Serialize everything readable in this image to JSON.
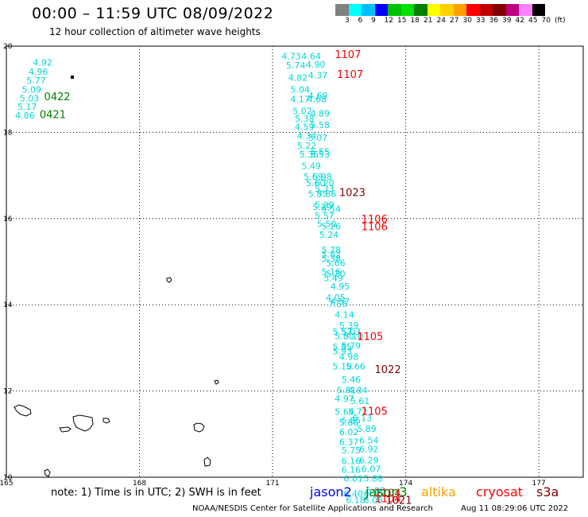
{
  "header": {
    "title": "00:00 – 11:59 UTC 08/09/2022",
    "subtitle": "12 hour collection of altimeter wave heights"
  },
  "colorbar": {
    "colors": [
      "#808080",
      "#00ffff",
      "#00bfff",
      "#0000ff",
      "#00c000",
      "#00e000",
      "#008000",
      "#ffff00",
      "#ffd000",
      "#ffa000",
      "#ff0000",
      "#c00000",
      "#800000",
      "#c00080",
      "#ff80ff",
      "#000000"
    ],
    "labels": [
      "3",
      "6",
      "9",
      "12",
      "15",
      "18",
      "21",
      "24",
      "27",
      "30",
      "33",
      "36",
      "39",
      "42",
      "45",
      "70",
      "(ft)"
    ]
  },
  "map": {
    "lon_range": [
      165,
      178
    ],
    "lat_range": [
      10,
      20
    ],
    "x_ticks": [
      "165",
      "168",
      "171",
      "174",
      "177"
    ],
    "y_ticks": [
      "20",
      "18",
      "16",
      "14",
      "12",
      "10"
    ],
    "swh_points": [
      {
        "lon": 165.6,
        "lat": 19.55,
        "v": "4.92"
      },
      {
        "lon": 165.5,
        "lat": 19.34,
        "v": "4.96"
      },
      {
        "lon": 165.45,
        "lat": 19.13,
        "v": "5.77"
      },
      {
        "lon": 165.35,
        "lat": 18.92,
        "v": "5.09"
      },
      {
        "lon": 165.3,
        "lat": 18.72,
        "v": "5.03"
      },
      {
        "lon": 165.25,
        "lat": 18.52,
        "v": "5.17"
      },
      {
        "lon": 165.2,
        "lat": 18.32,
        "v": "4.86"
      },
      {
        "lon": 171.2,
        "lat": 19.7,
        "v": "4.73"
      },
      {
        "lon": 171.65,
        "lat": 19.7,
        "v": "4.64"
      },
      {
        "lon": 171.3,
        "lat": 19.48,
        "v": "5.74"
      },
      {
        "lon": 171.75,
        "lat": 19.5,
        "v": "4.90"
      },
      {
        "lon": 171.35,
        "lat": 19.2,
        "v": "4.82"
      },
      {
        "lon": 171.8,
        "lat": 19.25,
        "v": "4.37"
      },
      {
        "lon": 171.4,
        "lat": 18.92,
        "v": "5.04"
      },
      {
        "lon": 171.8,
        "lat": 18.78,
        "v": "4.69"
      },
      {
        "lon": 171.4,
        "lat": 18.7,
        "v": "4.17"
      },
      {
        "lon": 171.78,
        "lat": 18.7,
        "v": "4.68"
      },
      {
        "lon": 171.45,
        "lat": 18.42,
        "v": "5.02"
      },
      {
        "lon": 171.85,
        "lat": 18.37,
        "v": "4.89"
      },
      {
        "lon": 171.5,
        "lat": 18.25,
        "v": "5.38"
      },
      {
        "lon": 171.85,
        "lat": 18.1,
        "v": "5.58"
      },
      {
        "lon": 171.5,
        "lat": 18.05,
        "v": "4.59"
      },
      {
        "lon": 171.55,
        "lat": 17.85,
        "v": "4.34"
      },
      {
        "lon": 171.8,
        "lat": 17.8,
        "v": "5.07"
      },
      {
        "lon": 171.55,
        "lat": 17.62,
        "v": "5.22"
      },
      {
        "lon": 171.85,
        "lat": 17.48,
        "v": "5.55"
      },
      {
        "lon": 171.6,
        "lat": 17.42,
        "v": "5.35"
      },
      {
        "lon": 171.85,
        "lat": 17.42,
        "v": "5.53"
      },
      {
        "lon": 171.65,
        "lat": 17.15,
        "v": "5.49"
      },
      {
        "lon": 171.7,
        "lat": 16.9,
        "v": "5.69"
      },
      {
        "lon": 171.9,
        "lat": 16.9,
        "v": "5.98"
      },
      {
        "lon": 171.75,
        "lat": 16.75,
        "v": "5.60"
      },
      {
        "lon": 171.95,
        "lat": 16.75,
        "v": "6.20"
      },
      {
        "lon": 171.95,
        "lat": 16.62,
        "v": "5.33"
      },
      {
        "lon": 171.8,
        "lat": 16.5,
        "v": "5.85"
      },
      {
        "lon": 172.0,
        "lat": 16.5,
        "v": "5.86"
      },
      {
        "lon": 171.95,
        "lat": 16.25,
        "v": "5.39"
      },
      {
        "lon": 171.9,
        "lat": 16.2,
        "v": "5.29"
      },
      {
        "lon": 172.1,
        "lat": 16.15,
        "v": "5.54"
      },
      {
        "lon": 171.95,
        "lat": 16.0,
        "v": "5.57"
      },
      {
        "lon": 172.0,
        "lat": 15.8,
        "v": "5.50"
      },
      {
        "lon": 172.1,
        "lat": 15.75,
        "v": "5.26"
      },
      {
        "lon": 172.05,
        "lat": 15.55,
        "v": "5.24"
      },
      {
        "lon": 172.1,
        "lat": 15.2,
        "v": "5.78"
      },
      {
        "lon": 172.1,
        "lat": 15.1,
        "v": "5.82"
      },
      {
        "lon": 172.1,
        "lat": 15.0,
        "v": "5.38"
      },
      {
        "lon": 172.2,
        "lat": 14.9,
        "v": "5.66"
      },
      {
        "lon": 172.1,
        "lat": 14.7,
        "v": "5.16"
      },
      {
        "lon": 172.2,
        "lat": 14.65,
        "v": "5.20"
      },
      {
        "lon": 172.15,
        "lat": 14.55,
        "v": "5.49"
      },
      {
        "lon": 172.3,
        "lat": 14.35,
        "v": "4.95"
      },
      {
        "lon": 172.2,
        "lat": 14.1,
        "v": "4.05"
      },
      {
        "lon": 172.3,
        "lat": 14.0,
        "v": "4.57"
      },
      {
        "lon": 172.25,
        "lat": 13.95,
        "v": "7.55"
      },
      {
        "lon": 172.4,
        "lat": 13.7,
        "v": "4.14"
      },
      {
        "lon": 172.5,
        "lat": 13.45,
        "v": "5.39"
      },
      {
        "lon": 172.35,
        "lat": 13.3,
        "v": "5.57"
      },
      {
        "lon": 172.55,
        "lat": 13.3,
        "v": "5.03"
      },
      {
        "lon": 172.4,
        "lat": 13.2,
        "v": "5.80"
      },
      {
        "lon": 172.6,
        "lat": 13.2,
        "v": "5.10"
      },
      {
        "lon": 172.35,
        "lat": 12.95,
        "v": "5.85"
      },
      {
        "lon": 172.55,
        "lat": 12.98,
        "v": "5.79"
      },
      {
        "lon": 172.35,
        "lat": 12.85,
        "v": "5.93"
      },
      {
        "lon": 172.5,
        "lat": 12.72,
        "v": "4.98"
      },
      {
        "lon": 172.35,
        "lat": 12.5,
        "v": "5.18"
      },
      {
        "lon": 172.65,
        "lat": 12.5,
        "v": "5.66"
      },
      {
        "lon": 172.55,
        "lat": 12.2,
        "v": "5.46"
      },
      {
        "lon": 172.45,
        "lat": 11.95,
        "v": "5.81"
      },
      {
        "lon": 172.7,
        "lat": 11.95,
        "v": "4.84"
      },
      {
        "lon": 172.4,
        "lat": 11.75,
        "v": "4.97"
      },
      {
        "lon": 172.75,
        "lat": 11.7,
        "v": "5.61"
      },
      {
        "lon": 172.4,
        "lat": 11.45,
        "v": "5.64"
      },
      {
        "lon": 172.7,
        "lat": 11.45,
        "v": "5.72"
      },
      {
        "lon": 172.55,
        "lat": 11.25,
        "v": "5.85"
      },
      {
        "lon": 172.5,
        "lat": 11.2,
        "v": "5.86"
      },
      {
        "lon": 172.8,
        "lat": 11.3,
        "v": "6.13"
      },
      {
        "lon": 172.5,
        "lat": 10.98,
        "v": "6.02"
      },
      {
        "lon": 172.9,
        "lat": 11.05,
        "v": "5.89"
      },
      {
        "lon": 172.5,
        "lat": 10.75,
        "v": "6.37"
      },
      {
        "lon": 172.95,
        "lat": 10.78,
        "v": "6.54"
      },
      {
        "lon": 172.55,
        "lat": 10.55,
        "v": "5.75"
      },
      {
        "lon": 172.95,
        "lat": 10.58,
        "v": "6.92"
      },
      {
        "lon": 172.55,
        "lat": 10.3,
        "v": "6.16"
      },
      {
        "lon": 172.95,
        "lat": 10.32,
        "v": "6.29"
      },
      {
        "lon": 172.55,
        "lat": 10.1,
        "v": "6.16"
      },
      {
        "lon": 173.0,
        "lat": 10.12,
        "v": "6.07"
      },
      {
        "lon": 172.6,
        "lat": 9.9,
        "v": "6.01"
      },
      {
        "lon": 173.05,
        "lat": 9.9,
        "v": "5.88"
      },
      {
        "lon": 173.1,
        "lat": 9.62,
        "v": "5.88"
      },
      {
        "lon": 172.6,
        "lat": 9.55,
        "v": "6.40"
      },
      {
        "lon": 173.05,
        "lat": 9.55,
        "v": "6.76"
      },
      {
        "lon": 172.65,
        "lat": 9.4,
        "v": "6.18"
      },
      {
        "lon": 173.05,
        "lat": 9.4,
        "v": "6.06"
      }
    ],
    "pass_labels": [
      {
        "lon": 165.85,
        "lat": 18.75,
        "text": "0422",
        "color": "#008000"
      },
      {
        "lon": 165.75,
        "lat": 18.33,
        "text": "0421",
        "color": "#008000"
      },
      {
        "lon": 172.4,
        "lat": 19.72,
        "text": "1107",
        "color": "#ff0000"
      },
      {
        "lon": 172.45,
        "lat": 19.26,
        "text": "1107",
        "color": "#ff0000"
      },
      {
        "lon": 172.5,
        "lat": 16.52,
        "text": "1023",
        "color": "#800000"
      },
      {
        "lon": 173.0,
        "lat": 15.9,
        "text": "1106",
        "color": "#ff0000"
      },
      {
        "lon": 173.0,
        "lat": 15.73,
        "text": "1106",
        "color": "#ff0000"
      },
      {
        "lon": 172.9,
        "lat": 13.18,
        "text": "1105",
        "color": "#ff0000"
      },
      {
        "lon": 173.3,
        "lat": 12.42,
        "text": "1022",
        "color": "#800000"
      },
      {
        "lon": 173.0,
        "lat": 11.45,
        "text": "1105",
        "color": "#ff0000"
      },
      {
        "lon": 173.3,
        "lat": 9.55,
        "text": "1104",
        "color": "#ff0000"
      },
      {
        "lon": 173.3,
        "lat": 9.42,
        "text": "1104",
        "color": "#ff0000"
      },
      {
        "lon": 173.55,
        "lat": 9.38,
        "text": "1021",
        "color": "#800000"
      }
    ]
  },
  "footer": {
    "note": "note: 1) Time is in UTC; 2) SWH is in feet",
    "satellites": [
      {
        "name": "jason2",
        "color": "#0000ff"
      },
      {
        "name": "jason3",
        "color": "#008000"
      },
      {
        "name": "altika",
        "color": "#ffa000"
      },
      {
        "name": "cryosat",
        "color": "#ff0000"
      },
      {
        "name": "s3a",
        "color": "#800000"
      }
    ],
    "credit": "NOAA/NESDIS Center for Satellite Applications and Research",
    "timestamp": "Aug 11 08:29:06 UTC 2022"
  }
}
